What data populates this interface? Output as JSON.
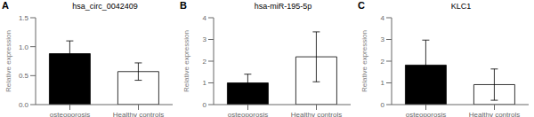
{
  "chart_data": [
    {
      "type": "bar",
      "title": "hsa_circ_0042409",
      "annotations": [
        "A"
      ],
      "y_label": "Relative expression",
      "categories": [
        "osteoporosis",
        "Healthy controls"
      ],
      "values": [
        0.88,
        0.57
      ],
      "errors": [
        0.22,
        0.15
      ],
      "colors": [
        "black",
        "white"
      ],
      "ylim": [
        0,
        1.5
      ],
      "yticks": [
        {
          "value": 0,
          "label": "0.0"
        },
        0.5,
        {
          "value": 1,
          "label": "1.0"
        },
        1.5
      ],
      "grid": false
    },
    {
      "type": "bar",
      "title": "hsa-miR-195-5p",
      "annotations": [
        "B"
      ],
      "y_label": "Relative expression",
      "categories": [
        "osteoporosis",
        "Healthy controls"
      ],
      "values": [
        1.0,
        2.2
      ],
      "errors": [
        0.4,
        1.15
      ],
      "colors": [
        "black",
        "white"
      ],
      "ylim": [
        0,
        4
      ],
      "yticks": [
        0,
        1,
        2,
        3,
        4
      ],
      "grid": false
    },
    {
      "type": "bar",
      "title": "KLC1",
      "annotations": [
        "C"
      ],
      "y_label": "Relative expression",
      "categories": [
        "osteoporosis",
        "Healthy controls"
      ],
      "values": [
        1.82,
        0.92
      ],
      "errors": [
        1.15,
        0.72
      ],
      "colors": [
        "black",
        "white"
      ],
      "ylim": [
        0,
        4
      ],
      "yticks": [
        0,
        1,
        2,
        3,
        4
      ],
      "grid": false
    }
  ]
}
